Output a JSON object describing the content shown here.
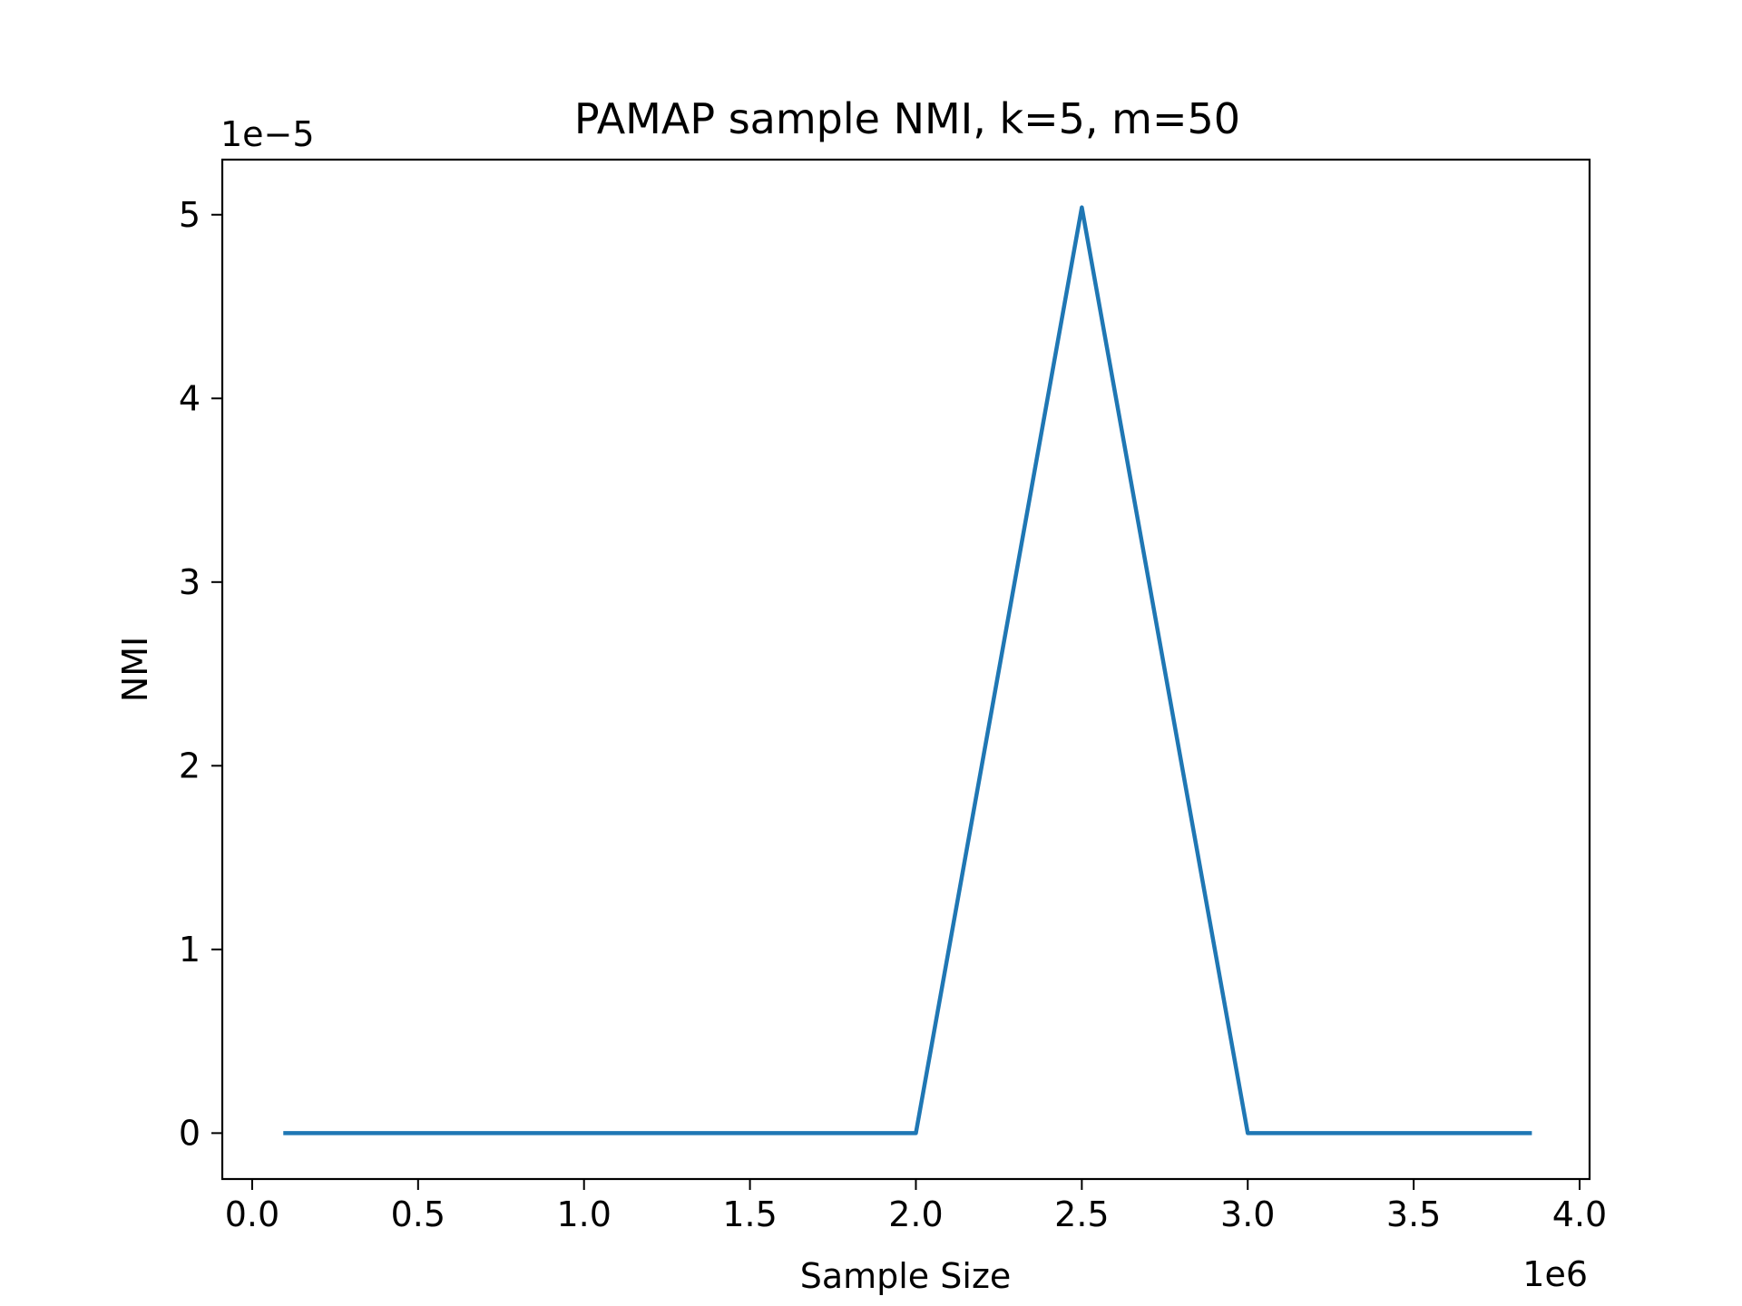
{
  "chart_data": {
    "type": "line",
    "title": "PAMAP sample NMI, k=5, m=50",
    "xlabel": "Sample Size",
    "ylabel": "NMI",
    "x_offset_label": "1e6",
    "y_offset_label": "1e−5",
    "xlim": [
      -90000,
      4030000
    ],
    "ylim": [
      -2.5e-06,
      5.3e-05
    ],
    "grid": false,
    "x_ticks": [
      {
        "value": 0,
        "label": "0.0"
      },
      {
        "value": 500000,
        "label": "0.5"
      },
      {
        "value": 1000000,
        "label": "1.0"
      },
      {
        "value": 1500000,
        "label": "1.5"
      },
      {
        "value": 2000000,
        "label": "2.0"
      },
      {
        "value": 2500000,
        "label": "2.5"
      },
      {
        "value": 3000000,
        "label": "3.0"
      },
      {
        "value": 3500000,
        "label": "3.5"
      },
      {
        "value": 4000000,
        "label": "4.0"
      }
    ],
    "y_ticks": [
      {
        "value": 0,
        "label": "0"
      },
      {
        "value": 1e-05,
        "label": "1"
      },
      {
        "value": 2e-05,
        "label": "2"
      },
      {
        "value": 3e-05,
        "label": "3"
      },
      {
        "value": 4e-05,
        "label": "4"
      },
      {
        "value": 5e-05,
        "label": "5"
      }
    ],
    "series": [
      {
        "color": "#1f77b4",
        "x": [
          100000,
          2000000,
          2500000,
          3000000,
          3850000
        ],
        "y": [
          0,
          0,
          5.04e-05,
          0,
          0
        ]
      }
    ]
  }
}
